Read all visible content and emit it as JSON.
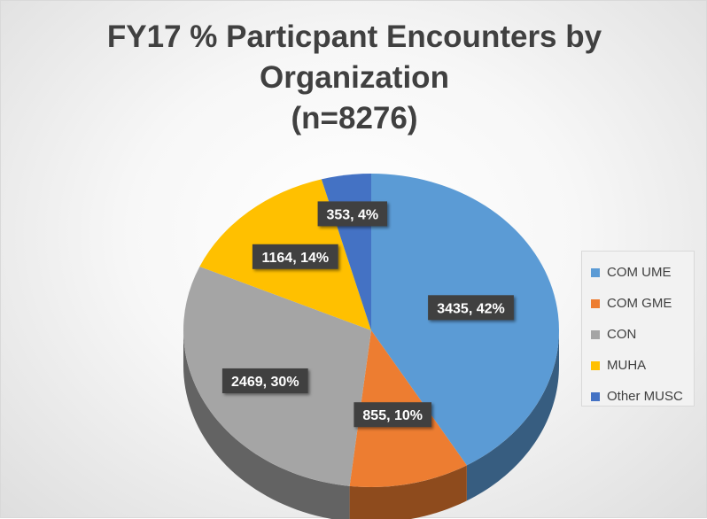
{
  "chart_data": {
    "type": "pie",
    "title_lines": [
      "FY17 % Particpant Encounters by",
      "Organization",
      "(n=8276)"
    ],
    "slices": [
      {
        "label": "COM UME",
        "value": 3435,
        "percent": 42,
        "color": "#5b9bd5",
        "data_label": "3435, 42%"
      },
      {
        "label": "COM GME",
        "value": 855,
        "percent": 10,
        "color": "#ed7d31",
        "data_label": "855, 10%"
      },
      {
        "label": "CON",
        "value": 2469,
        "percent": 30,
        "color": "#a5a5a5",
        "data_label": "2469, 30%"
      },
      {
        "label": "MUHA",
        "value": 1164,
        "percent": 14,
        "color": "#ffc000",
        "data_label": "1164, 14%"
      },
      {
        "label": "Other MUSC",
        "value": 353,
        "percent": 4,
        "color": "#4472c4",
        "data_label": "353, 4%"
      }
    ],
    "legend_position": "right",
    "style": "3d-pie"
  }
}
